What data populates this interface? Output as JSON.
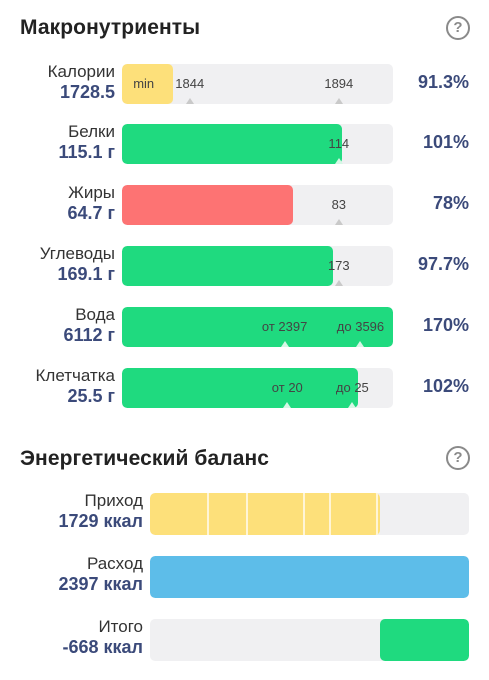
{
  "macros": {
    "title": "Макронутриенты",
    "help": "?",
    "rows": [
      {
        "label": "Калории",
        "value": "1728.5",
        "pct": "91.3%",
        "fill_fraction": 0.19,
        "fill_color": "#fde07a",
        "marks": [
          {
            "text": "min",
            "pos": 0.08
          },
          {
            "text": "1844",
            "pos": 0.25
          },
          {
            "text": "1894",
            "pos": 0.8
          }
        ]
      },
      {
        "label": "Белки",
        "value": "115.1 г",
        "pct": "101%",
        "fill_fraction": 0.81,
        "fill_color": "#1fda7f",
        "marks": [
          {
            "text": "114",
            "pos": 0.8
          }
        ]
      },
      {
        "label": "Жиры",
        "value": "64.7 г",
        "pct": "78%",
        "fill_fraction": 0.63,
        "fill_color": "#fd7373",
        "marks": [
          {
            "text": "83",
            "pos": 0.8
          }
        ]
      },
      {
        "label": "Углеводы",
        "value": "169.1 г",
        "pct": "97.7%",
        "fill_fraction": 0.78,
        "fill_color": "#1fda7f",
        "marks": [
          {
            "text": "173",
            "pos": 0.8
          }
        ]
      },
      {
        "label": "Вода",
        "value": "6112 г",
        "pct": "170%",
        "fill_fraction": 1.0,
        "fill_color": "#1fda7f",
        "marks": [
          {
            "text": "от 2397",
            "pos": 0.6
          },
          {
            "text": "до 3596",
            "pos": 0.88
          }
        ]
      },
      {
        "label": "Клетчатка",
        "value": "25.5 г",
        "pct": "102%",
        "fill_fraction": 0.87,
        "fill_color": "#1fda7f",
        "marks": [
          {
            "text": "от 20",
            "pos": 0.61
          },
          {
            "text": "до 25",
            "pos": 0.85
          }
        ]
      }
    ]
  },
  "energy": {
    "title": "Энергетический баланс",
    "help": "?",
    "rows": [
      {
        "label": "Приход",
        "value": "1729 ккал",
        "fill_fraction": 0.72,
        "fill_start": 0.0,
        "fill_color": "#fde07a",
        "segments": true
      },
      {
        "label": "Расход",
        "value": "2397 ккал",
        "fill_fraction": 1.0,
        "fill_start": 0.0,
        "fill_color": "#5dbde9",
        "segments": false
      },
      {
        "label": "Итого",
        "value": "-668 ккал",
        "fill_fraction": 0.28,
        "fill_start": 0.72,
        "fill_color": "#1fda7f",
        "segments": false
      }
    ]
  }
}
